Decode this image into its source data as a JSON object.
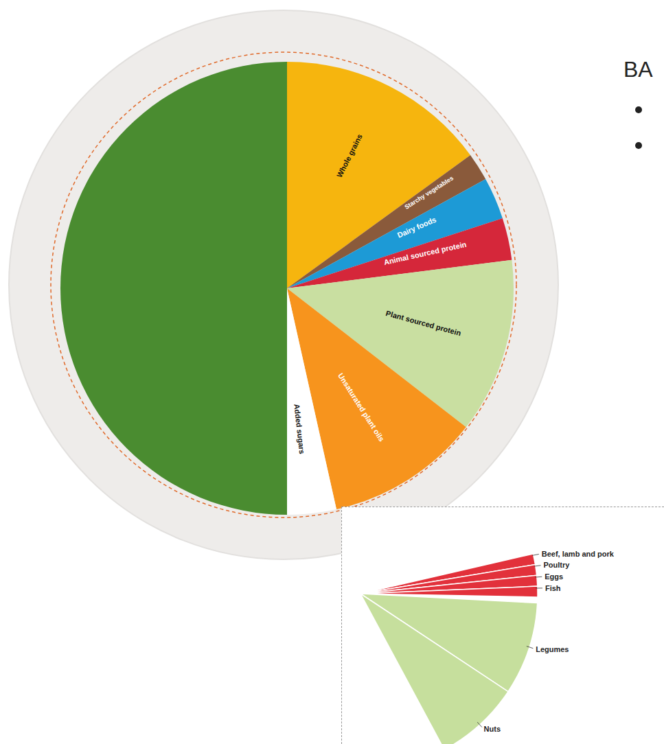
{
  "chart_data": [
    {
      "type": "pie",
      "categories": [
        "Whole grains",
        "Starchy vegetables",
        "Dairy foods",
        "Animal sourced protein",
        "Plant sourced protein",
        "Unsaturated plant oils",
        "Added sugars",
        null
      ],
      "values": [
        15,
        2,
        3,
        3,
        12.5,
        11,
        3.5,
        50
      ],
      "colors": [
        "#f6b50e",
        "#8a5a3b",
        "#1d9ad6",
        "#d5273a",
        "#c9dfa1",
        "#f7941d",
        "#ffffff",
        "#4a8c30"
      ],
      "annotations": [
        "BA"
      ]
    },
    {
      "type": "pie",
      "categories": [
        "Beef, lamb and pork",
        "Poultry",
        "Eggs",
        "Fish",
        "Legumes",
        "Nuts"
      ],
      "values": [
        0.75,
        0.75,
        0.75,
        0.75,
        6.5,
        6
      ],
      "colors": [
        "#e2313b",
        "#e2313b",
        "#e2313b",
        "#e2313b",
        "#c6df9d",
        "#c6df9d"
      ]
    }
  ]
}
